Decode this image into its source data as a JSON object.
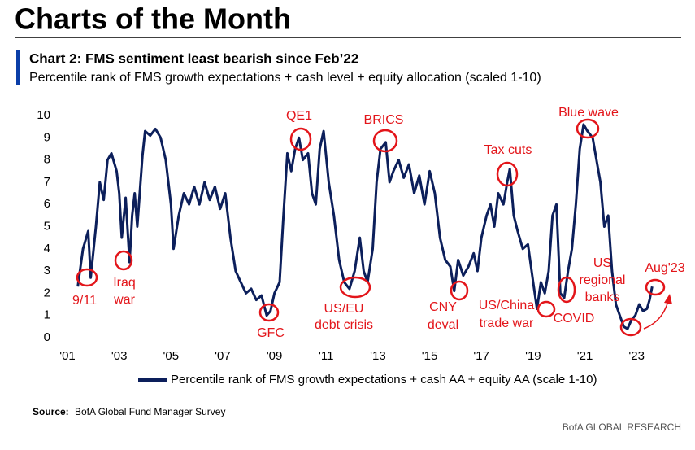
{
  "header": {
    "title": "Charts of the Month"
  },
  "chart_data": {
    "type": "line",
    "title": "Chart 2: FMS sentiment least bearish since Feb’22",
    "subtitle": "Percentile rank of FMS growth expectations + cash level + equity allocation (scaled 1-10)",
    "x": [
      2001.4,
      2001.6,
      2001.8,
      2001.9,
      2002.1,
      2002.25,
      2002.4,
      2002.55,
      2002.7,
      2002.9,
      2003.0,
      2003.1,
      2003.25,
      2003.4,
      2003.5,
      2003.6,
      2003.7,
      2003.9,
      2004.0,
      2004.2,
      2004.4,
      2004.6,
      2004.8,
      2005.0,
      2005.1,
      2005.3,
      2005.5,
      2005.7,
      2005.9,
      2006.1,
      2006.3,
      2006.5,
      2006.7,
      2006.9,
      2007.1,
      2007.3,
      2007.5,
      2007.7,
      2007.9,
      2008.1,
      2008.3,
      2008.5,
      2008.7,
      2008.85,
      2009.0,
      2009.2,
      2009.35,
      2009.5,
      2009.65,
      2009.8,
      2009.95,
      2010.1,
      2010.3,
      2010.45,
      2010.6,
      2010.75,
      2010.9,
      2011.1,
      2011.3,
      2011.5,
      2011.7,
      2011.9,
      2012.1,
      2012.3,
      2012.45,
      2012.6,
      2012.8,
      2012.95,
      2013.1,
      2013.3,
      2013.45,
      2013.6,
      2013.8,
      2014.0,
      2014.2,
      2014.4,
      2014.6,
      2014.8,
      2015.0,
      2015.2,
      2015.4,
      2015.6,
      2015.8,
      2015.95,
      2016.1,
      2016.3,
      2016.5,
      2016.7,
      2016.85,
      2017.0,
      2017.2,
      2017.35,
      2017.5,
      2017.65,
      2017.85,
      2018.0,
      2018.1,
      2018.25,
      2018.4,
      2018.6,
      2018.8,
      2019.0,
      2019.15,
      2019.3,
      2019.45,
      2019.6,
      2019.75,
      2019.9,
      2020.05,
      2020.2,
      2020.35,
      2020.5,
      2020.65,
      2020.8,
      2020.95,
      2021.1,
      2021.3,
      2021.45,
      2021.6,
      2021.75,
      2021.9,
      2022.05,
      2022.2,
      2022.35,
      2022.5,
      2022.65,
      2022.8,
      2022.95,
      2023.1,
      2023.25,
      2023.4,
      2023.5,
      2023.6
    ],
    "series": [
      {
        "name": "Percentile rank of FMS growth expectations + cash AA + equity AA (scale 1-10)",
        "color": "#0c1f5b",
        "values": [
          2.3,
          4.0,
          4.8,
          2.7,
          5.0,
          7.0,
          6.2,
          8.0,
          8.3,
          7.5,
          6.5,
          4.5,
          6.3,
          3.4,
          5.5,
          6.5,
          5.0,
          8.2,
          9.3,
          9.1,
          9.4,
          9.0,
          8.0,
          6.0,
          4.0,
          5.5,
          6.5,
          6.0,
          6.8,
          6.0,
          7.0,
          6.2,
          6.8,
          5.8,
          6.5,
          4.5,
          3.0,
          2.5,
          2.0,
          2.2,
          1.7,
          1.9,
          1.0,
          1.2,
          2.0,
          2.5,
          5.5,
          8.3,
          7.5,
          8.5,
          9.0,
          8.0,
          8.3,
          6.5,
          6.0,
          8.5,
          9.3,
          7.0,
          5.5,
          3.5,
          2.5,
          2.2,
          3.0,
          4.5,
          3.0,
          2.5,
          4.0,
          7.0,
          8.5,
          8.8,
          7.0,
          7.5,
          8.0,
          7.2,
          7.8,
          6.5,
          7.3,
          6.0,
          7.5,
          6.5,
          4.5,
          3.5,
          3.2,
          2.1,
          3.5,
          2.8,
          3.2,
          3.8,
          3.0,
          4.5,
          5.5,
          6.0,
          5.0,
          6.5,
          6.0,
          7.0,
          7.6,
          5.5,
          4.8,
          4.0,
          4.2,
          2.5,
          1.3,
          2.5,
          2.0,
          3.0,
          5.5,
          6.0,
          2.0,
          1.8,
          3.0,
          4.0,
          6.0,
          8.5,
          9.6,
          9.3,
          9.0,
          8.0,
          7.0,
          5.0,
          5.5,
          3.0,
          1.5,
          1.0,
          0.5,
          0.4,
          0.8,
          1.0,
          1.5,
          1.2,
          1.3,
          1.7,
          2.3
        ]
      }
    ],
    "xlim": [
      2001,
      2024
    ],
    "xticks": [
      {
        "value": 2001,
        "label": "'01"
      },
      {
        "value": 2003,
        "label": "'03"
      },
      {
        "value": 2005,
        "label": "'05"
      },
      {
        "value": 2007,
        "label": "'07"
      },
      {
        "value": 2009,
        "label": "'09"
      },
      {
        "value": 2011,
        "label": "'11"
      },
      {
        "value": 2013,
        "label": "'13"
      },
      {
        "value": 2015,
        "label": "'15"
      },
      {
        "value": 2017,
        "label": "'17"
      },
      {
        "value": 2019,
        "label": "'19"
      },
      {
        "value": 2021,
        "label": "'21"
      },
      {
        "value": 2023,
        "label": "'23"
      }
    ],
    "ylim": [
      0,
      10
    ],
    "yticks": [
      0,
      1,
      2,
      3,
      4,
      5,
      6,
      7,
      8,
      9,
      10
    ],
    "annotation_color": "#e3151a",
    "annotations": [
      [
        "9/11"
      ],
      [
        "Iraq",
        "war"
      ],
      [
        "QE1"
      ],
      [
        "GFC"
      ],
      [
        "BRICS"
      ],
      [
        "US/EU",
        "debt crisis"
      ],
      [
        "CNY",
        "deval"
      ],
      [
        "Tax cuts"
      ],
      [
        "US/China",
        "trade war"
      ],
      [
        "COVID"
      ],
      [
        "Blue wave"
      ],
      [
        "US",
        "regional",
        "banks"
      ],
      [
        "Aug'23"
      ]
    ]
  },
  "footer": {
    "source_label": "Source:",
    "source": "BofA Global Fund Manager Survey",
    "brand": "BofA GLOBAL RESEARCH"
  }
}
